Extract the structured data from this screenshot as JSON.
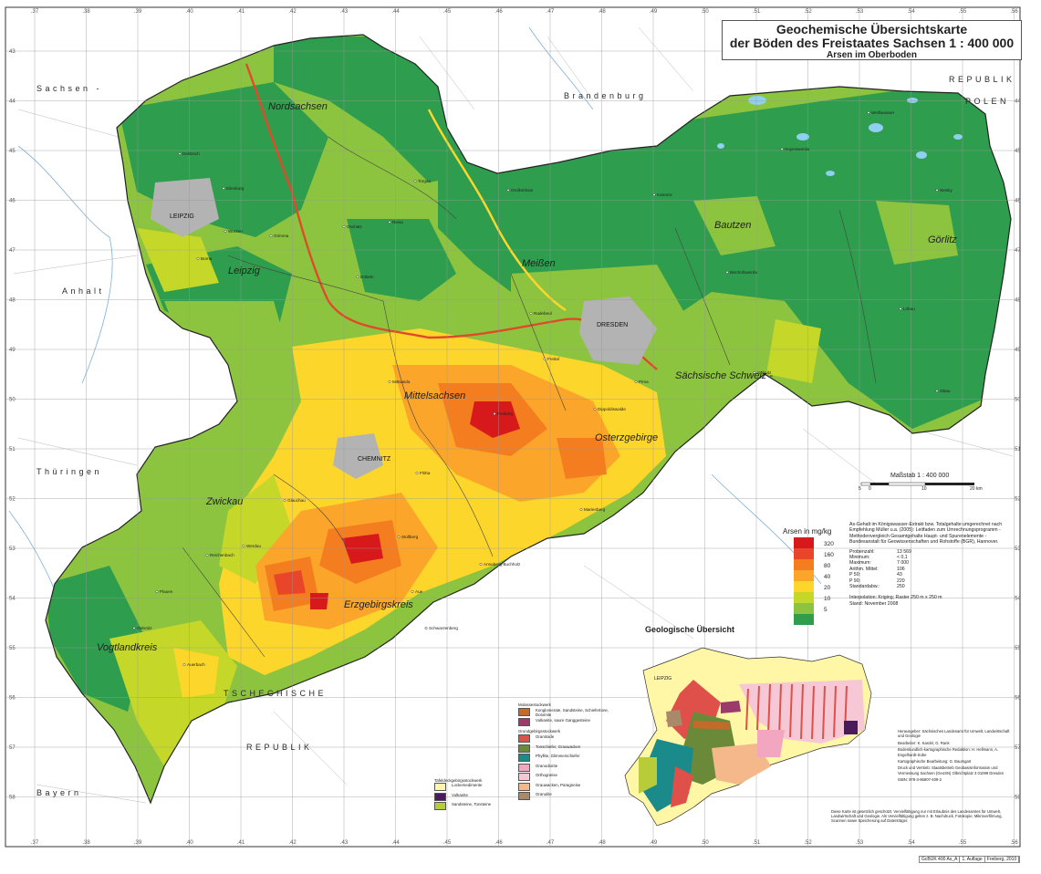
{
  "title": {
    "line1": "Geochemische Übersichtskarte",
    "line2": "der Böden des Freistaates Sachsen 1 : 400 000",
    "line3": "Arsen im Oberboden"
  },
  "grid": {
    "top_numbers": [
      ".37",
      ".38",
      ".39",
      ".40",
      ".41",
      ".42",
      ".43",
      ".44",
      ".45",
      ".46",
      ".47",
      ".48",
      ".49",
      ".50",
      ".51",
      ".52",
      ".53",
      ".54",
      ".55",
      ".56"
    ],
    "side_numbers": [
      "43",
      "44",
      "45",
      "46",
      "47",
      "48",
      "49",
      "50",
      "51",
      "52",
      "53",
      "54",
      "55",
      "56",
      "57",
      "58"
    ]
  },
  "countries": {
    "sachsen_anhalt": "Sachsen -",
    "anhalt": "Anhalt",
    "brandenburg": "Brandenburg",
    "republik_polen_1": "REPUBLIK",
    "republik_polen_2": "POLEN",
    "thueringen": "Thüringen",
    "bayern": "Bayern",
    "tschechische": "TSCHECHISCHE",
    "republik": "REPUBLIK"
  },
  "regions": {
    "nordsachsen": "Nordsachsen",
    "leipzig": "Leipzig",
    "meissen": "Meißen",
    "bautzen": "Bautzen",
    "goerlitz": "Görlitz",
    "saechsische_schweiz": "Sächsische Schweiz -",
    "mittelsachsen": "Mittelsachsen",
    "osterzgebirge": "Osterzgebirge",
    "zwickau": "Zwickau",
    "erzgebirgskreis": "Erzgebirgskreis",
    "vogtlandkreis": "Vogtlandkreis"
  },
  "cities": {
    "leipzig": "LEIPZIG",
    "dresden": "DRESDEN",
    "chemnitz": "CHEMNITZ"
  },
  "places": [
    "Torgau",
    "Eilenburg",
    "Delitzsch",
    "Grimma",
    "Döbeln",
    "Riesa",
    "Großenhain",
    "Kamenz",
    "Hoyerswerda",
    "Weißwasser",
    "Niesky",
    "Löbau",
    "Zittau",
    "Pirna",
    "Freital",
    "Freiberg",
    "Marienberg",
    "Annaberg-Buchholz",
    "Aue",
    "Plauen",
    "Oelsnitz",
    "Reichenbach",
    "Glauchau",
    "Mittweida",
    "Borna",
    "Wurzen",
    "Oschatz",
    "Radebeul",
    "Bischofswerda",
    "Sebnitz",
    "Dippoldiswalde",
    "Flöha",
    "Stollberg",
    "Werdau",
    "Schwarzenberg",
    "Auerbach"
  ],
  "scale": {
    "label": "Maßstab 1 : 400 000",
    "ticks": [
      "5",
      "0",
      "10",
      "20 km"
    ]
  },
  "legend": {
    "title": "Arsen in mg/kg",
    "classes": [
      {
        "value": "320",
        "color": "#d7191c"
      },
      {
        "value": "160",
        "color": "#e8452a"
      },
      {
        "value": "80",
        "color": "#f47d1f"
      },
      {
        "value": "40",
        "color": "#fba62a"
      },
      {
        "value": "20",
        "color": "#fdd62c"
      },
      {
        "value": "10",
        "color": "#c5d82a"
      },
      {
        "value": "5",
        "color": "#8cc43f"
      },
      {
        "value": "",
        "color": "#2e9d4d"
      }
    ]
  },
  "notes": {
    "method": "As-Gehalt im Königswasser-Extrakt bzw. Totalgehalte umgerechnet nach Empfehlung Müller u.a. (2005): Leitfaden zum Umrechnungsprogramm - Methodenvergleich Gesamtgehalte Haupt- und Spurenelemente - Bundesanstalt für Geowissenschaften und Rohstoffe (BGR), Hannover.",
    "stats": [
      {
        "k": "Probenzahl:",
        "v": "13 569"
      },
      {
        "k": "Minimum:",
        "v": "< 0,1"
      },
      {
        "k": "Maximum:",
        "v": "7 000"
      },
      {
        "k": "Arithm. Mittel:",
        "v": "106"
      },
      {
        "k": "P 50:",
        "v": "43"
      },
      {
        "k": "P 90:",
        "v": "220"
      },
      {
        "k": "Standardabw.:",
        "v": "250"
      }
    ],
    "interpolation": "Interpolation: Kriging; Raster 250 m x 250 m",
    "stand": "Stand: November 2008"
  },
  "geo_overview": {
    "title": "Geologische Übersicht",
    "label": "LEIPZIG"
  },
  "stratigraphy": {
    "molasse_header": "Molassestockwerk",
    "molasse": [
      {
        "label": "Konglomerate, Sandsteine, Schiefertone, Dolomite",
        "color": "#c46a2a"
      },
      {
        "label": "Vulkanite, saure Ganggesteine",
        "color": "#9c3a6a"
      }
    ],
    "grundgebirge_header": "Grundgebirgsstockwerk",
    "grundgebirge": [
      {
        "label": "Granitoide",
        "color": "#e0504a"
      },
      {
        "label": "Tonschiefer, Grauwacken",
        "color": "#6a8a3a"
      },
      {
        "label": "Phyllite, Glimmerschiefer",
        "color": "#1a8a8a"
      },
      {
        "label": "Granodiorite",
        "color": "#f2a6c0"
      },
      {
        "label": "Orthogneise",
        "color": "#f6c8d6"
      },
      {
        "label": "Grauwacken, Paragneise",
        "color": "#f4b88a"
      },
      {
        "label": "Granulite",
        "color": "#a88a6a"
      }
    ],
    "tafeldeck_header": "Tafeldeckgebirgsstockwerk",
    "tafeldeck": [
      {
        "label": "Lockersedimente",
        "color": "#fff6a6"
      },
      {
        "label": "Vulkanite",
        "color": "#4a1a5a"
      },
      {
        "label": "Sandsteine, Tonsteine",
        "color": "#b8cc3a"
      }
    ]
  },
  "credits": {
    "lines": [
      "Herausgeber: Sächsisches Landesamt für Umwelt, Landwirtschaft und Geologie",
      "Bearbeiter: K. Kardel, G. Rank",
      "Bodenkundlich-kartographische Redaktion: H. Hellmann, A. Engelhardt-Sobe",
      "Kartographische Bearbeitung: G. Baumgart",
      "Druck und Vertrieb: Staatsbetrieb Geobasisinformation und Vermessung Sachsen (GeoSN) Olbrichtplatz 3 01099 Dresden",
      "ISBN: 978-3-86807-409-2"
    ]
  },
  "bottom_note": "Diese Karte ist gesetzlich geschützt. Vervielfältigung nur mit Erlaubnis des Landesamtes für Umwelt, Landwirtschaft und Geologie. Als Vervielfältigung gelten z. B. Nachdruck, Fotokopie, Mikroverfilmung, Scannen sowie Speicherung auf Datenträger.",
  "imprint": [
    "GcBÜK 400 As_A",
    "1. Auflage",
    "Freiberg, 2010"
  ]
}
